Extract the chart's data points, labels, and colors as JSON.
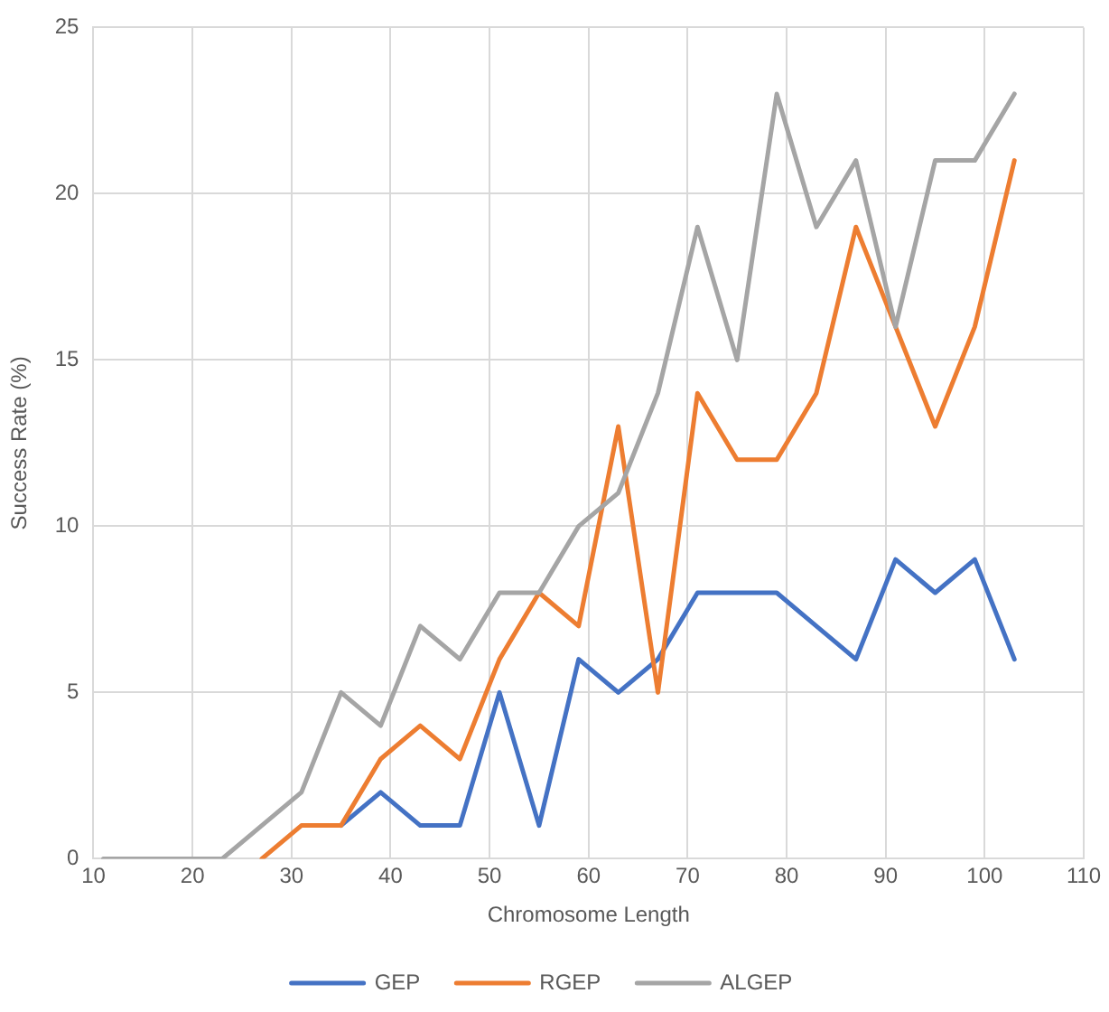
{
  "chart_data": {
    "type": "line",
    "xlabel": "Chromosome Length",
    "ylabel": "Success Rate (%)",
    "x": [
      11,
      15,
      19,
      23,
      27,
      31,
      35,
      39,
      43,
      47,
      51,
      55,
      59,
      63,
      67,
      71,
      75,
      79,
      83,
      87,
      91,
      95,
      99,
      103
    ],
    "series": [
      {
        "name": "GEP",
        "color": "#4472c4",
        "values": [
          null,
          null,
          null,
          null,
          null,
          null,
          1,
          2,
          1,
          1,
          5,
          1,
          6,
          5,
          6,
          8,
          8,
          8,
          7,
          6,
          9,
          8,
          9,
          6
        ]
      },
      {
        "name": "RGEP",
        "color": "#ed7d31",
        "values": [
          null,
          null,
          null,
          null,
          0,
          1,
          1,
          3,
          4,
          3,
          6,
          8,
          7,
          13,
          5,
          14,
          12,
          12,
          14,
          19,
          16,
          13,
          16,
          21
        ]
      },
      {
        "name": "ALGEP",
        "color": "#a5a5a5",
        "values": [
          0,
          0,
          0,
          0,
          1,
          2,
          5,
          4,
          7,
          6,
          8,
          8,
          10,
          11,
          14,
          19,
          15,
          23,
          19,
          21,
          16,
          21,
          21,
          23
        ]
      }
    ],
    "xlim": [
      10,
      110
    ],
    "xticks": [
      10,
      20,
      30,
      40,
      50,
      60,
      70,
      80,
      90,
      100,
      110
    ],
    "ylim": [
      0,
      25
    ],
    "yticks": [
      0,
      5,
      10,
      15,
      20,
      25
    ],
    "grid": true,
    "legend": "bottom",
    "marker": "none",
    "line_style": "solid"
  }
}
